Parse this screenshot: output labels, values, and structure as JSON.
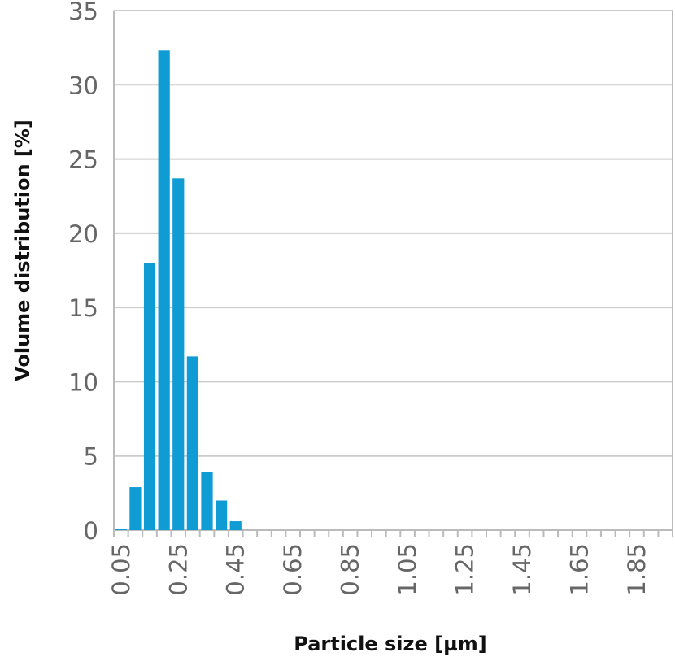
{
  "chart_data": {
    "type": "bar",
    "title": "",
    "xlabel": "Particle size [µm]",
    "ylabel": "Volume distribution [%]",
    "ylim": [
      0,
      35
    ],
    "yticks": [
      "0",
      "5",
      "10",
      "15",
      "20",
      "25",
      "30",
      "35"
    ],
    "categories": [
      "0.05",
      "0.1",
      "0.15",
      "0.2",
      "0.25",
      "0.3",
      "0.35",
      "0.4",
      "0.45",
      "0.5",
      "0.55",
      "0.6",
      "0.65",
      "0.7",
      "0.75",
      "0.8",
      "0.85",
      "0.9",
      "0.95",
      "1",
      "1.05",
      "1.1",
      "1.15",
      "1.2",
      "1.25",
      "1.3",
      "1.35",
      "1.4",
      "1.45",
      "1.5",
      "1.55",
      "1.6",
      "1.65",
      "1.7",
      "1.75",
      "1.8",
      "1.85",
      "1.9",
      "1.95"
    ],
    "x_tick_labels": [
      "0.05",
      "0.25",
      "0.45",
      "0.65",
      "0.85",
      "1.05",
      "1.25",
      "1.45",
      "1.65",
      "1.85"
    ],
    "values": [
      0.1,
      2.9,
      18.0,
      32.3,
      23.7,
      11.7,
      3.9,
      2.0,
      0.6,
      0,
      0,
      0,
      0,
      0,
      0,
      0,
      0,
      0,
      0,
      0,
      0,
      0,
      0,
      0,
      0,
      0,
      0,
      0,
      0,
      0,
      0,
      0,
      0,
      0,
      0,
      0,
      0,
      0,
      0
    ],
    "grid": true,
    "legend": "none",
    "colors": {
      "bar": "#0f9bd4",
      "grid": "#cccccc",
      "tick_text": "#666666"
    }
  }
}
